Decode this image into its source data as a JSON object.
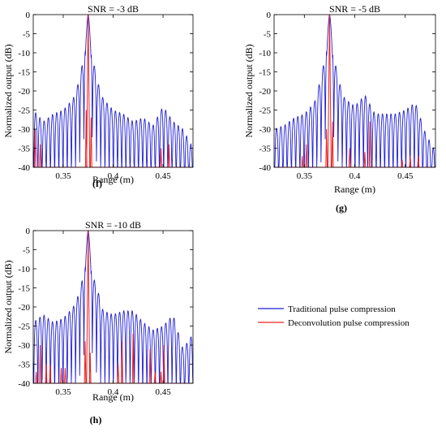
{
  "colors": {
    "traditional": "#1f1fd6",
    "deconvolution": "#ee2020",
    "axis": "#000000"
  },
  "legend": {
    "placement": "right, beside panel (h)",
    "entries": [
      {
        "label": "Traditional pulse compression",
        "color": "#1f1fd6"
      },
      {
        "label": "Deconvolution  pulse compression",
        "color": "#ee2020"
      }
    ]
  },
  "chart_data": [
    {
      "type": "line",
      "panel_label": "(f)",
      "title": "SNR = -3 dB",
      "xlabel": "Range (m)",
      "ylabel": "Normalized output (dB)",
      "xlim": [
        0.32,
        0.48
      ],
      "ylim": [
        -40,
        0
      ],
      "xticks": [
        0.35,
        0.4,
        0.45
      ],
      "xtick_labels": [
        "0.35",
        "0.4",
        "0.45"
      ],
      "yticks": [
        0,
        -5,
        -10,
        -15,
        -20,
        -25,
        -30,
        -35,
        -40
      ],
      "ytick_labels": [
        "0",
        "-5",
        "-10",
        "-15",
        "-20",
        "-25",
        "-30",
        "-35",
        "-40"
      ],
      "series": [
        {
          "name": "Traditional pulse compression",
          "peak_x": 0.375,
          "envelope": [
            [
              0.32,
              -25
            ],
            [
              0.33,
              -28
            ],
            [
              0.34,
              -26
            ],
            [
              0.35,
              -25
            ],
            [
              0.36,
              -22
            ],
            [
              0.365,
              -18
            ],
            [
              0.37,
              -12
            ],
            [
              0.373,
              -4
            ],
            [
              0.375,
              0
            ],
            [
              0.377,
              -4
            ],
            [
              0.38,
              -12
            ],
            [
              0.385,
              -18
            ],
            [
              0.39,
              -22
            ],
            [
              0.4,
              -25
            ],
            [
              0.41,
              -26
            ],
            [
              0.42,
              -28
            ],
            [
              0.43,
              -27
            ],
            [
              0.44,
              -29
            ],
            [
              0.45,
              -24
            ],
            [
              0.46,
              -28
            ],
            [
              0.47,
              -30
            ],
            [
              0.48,
              -35
            ]
          ]
        },
        {
          "name": "Deconvolution  pulse compression",
          "peak_x": 0.375,
          "spikes": [
            [
              0.322,
              -30
            ],
            [
              0.327,
              -34
            ],
            [
              0.375,
              0
            ],
            [
              0.373,
              -25
            ],
            [
              0.378,
              -27
            ],
            [
              0.448,
              -35
            ],
            [
              0.456,
              -34
            ]
          ]
        }
      ]
    },
    {
      "type": "line",
      "panel_label": "(g)",
      "title": "SNR = -5 dB",
      "xlabel": "Range (m)",
      "ylabel": "Normalized output (dB)",
      "xlim": [
        0.32,
        0.48
      ],
      "ylim": [
        -40,
        0
      ],
      "xticks": [
        0.35,
        0.4,
        0.45
      ],
      "xtick_labels": [
        "0.35",
        "0.4",
        "0.45"
      ],
      "yticks": [
        0,
        -5,
        -10,
        -15,
        -20,
        -25,
        -30,
        -35,
        -40
      ],
      "ytick_labels": [
        "0",
        "-5",
        "-10",
        "-15",
        "-20",
        "-25",
        "-30",
        "-35",
        "-40"
      ],
      "series": [
        {
          "name": "Traditional pulse compression",
          "peak_x": 0.375,
          "envelope": [
            [
              0.32,
              -30
            ],
            [
              0.33,
              -29
            ],
            [
              0.34,
              -27
            ],
            [
              0.35,
              -26
            ],
            [
              0.36,
              -23
            ],
            [
              0.365,
              -18
            ],
            [
              0.37,
              -12
            ],
            [
              0.373,
              -4
            ],
            [
              0.375,
              0
            ],
            [
              0.377,
              -4
            ],
            [
              0.38,
              -12
            ],
            [
              0.385,
              -18
            ],
            [
              0.39,
              -22
            ],
            [
              0.4,
              -24
            ],
            [
              0.41,
              -21
            ],
            [
              0.42,
              -26
            ],
            [
              0.43,
              -26
            ],
            [
              0.44,
              -26
            ],
            [
              0.45,
              -25
            ],
            [
              0.46,
              -23
            ],
            [
              0.47,
              -31
            ],
            [
              0.48,
              -36
            ]
          ]
        },
        {
          "name": "Deconvolution  pulse compression",
          "peak_x": 0.375,
          "spikes": [
            [
              0.348,
              -37
            ],
            [
              0.352,
              -34
            ],
            [
              0.372,
              -30
            ],
            [
              0.375,
              0
            ],
            [
              0.378,
              -28
            ],
            [
              0.395,
              -35
            ],
            [
              0.41,
              -36
            ],
            [
              0.415,
              -28
            ],
            [
              0.447,
              -38
            ],
            [
              0.455,
              -37
            ],
            [
              0.463,
              -37
            ]
          ]
        }
      ]
    },
    {
      "type": "line",
      "panel_label": "(h)",
      "title": "SNR = -10 dB",
      "xlabel": "Range (m)",
      "ylabel": "Normalized output (dB)",
      "xlim": [
        0.32,
        0.48
      ],
      "ylim": [
        -40,
        0
      ],
      "xticks": [
        0.35,
        0.4,
        0.45
      ],
      "xtick_labels": [
        "0.35",
        "0.4",
        "0.45"
      ],
      "yticks": [
        0,
        -5,
        -10,
        -15,
        -20,
        -25,
        -30,
        -35,
        -40
      ],
      "ytick_labels": [
        "0",
        "-5",
        "-10",
        "-15",
        "-20",
        "-25",
        "-30",
        "-35",
        "-40"
      ],
      "series": [
        {
          "name": "Traditional pulse compression",
          "peak_x": 0.375,
          "envelope": [
            [
              0.32,
              -24
            ],
            [
              0.33,
              -22
            ],
            [
              0.34,
              -24
            ],
            [
              0.35,
              -23
            ],
            [
              0.36,
              -20
            ],
            [
              0.365,
              -17
            ],
            [
              0.37,
              -12
            ],
            [
              0.373,
              -4
            ],
            [
              0.375,
              0
            ],
            [
              0.377,
              -4
            ],
            [
              0.38,
              -12
            ],
            [
              0.385,
              -16
            ],
            [
              0.39,
              -21
            ],
            [
              0.4,
              -22
            ],
            [
              0.41,
              -21
            ],
            [
              0.42,
              -21
            ],
            [
              0.43,
              -24
            ],
            [
              0.44,
              -26
            ],
            [
              0.45,
              -25
            ],
            [
              0.46,
              -22
            ],
            [
              0.47,
              -31
            ],
            [
              0.48,
              -27
            ]
          ]
        },
        {
          "name": "Deconvolution  pulse compression",
          "peak_x": 0.375,
          "spikes": [
            [
              0.323,
              -37
            ],
            [
              0.327,
              -30
            ],
            [
              0.333,
              -35
            ],
            [
              0.337,
              -35
            ],
            [
              0.348,
              -36
            ],
            [
              0.352,
              -36
            ],
            [
              0.372,
              -29
            ],
            [
              0.375,
              0
            ],
            [
              0.377,
              -32
            ],
            [
              0.405,
              -35
            ],
            [
              0.409,
              -29
            ],
            [
              0.42,
              -27
            ],
            [
              0.437,
              -31
            ],
            [
              0.442,
              -37
            ],
            [
              0.448,
              -37
            ],
            [
              0.451,
              -30
            ]
          ]
        }
      ]
    }
  ]
}
